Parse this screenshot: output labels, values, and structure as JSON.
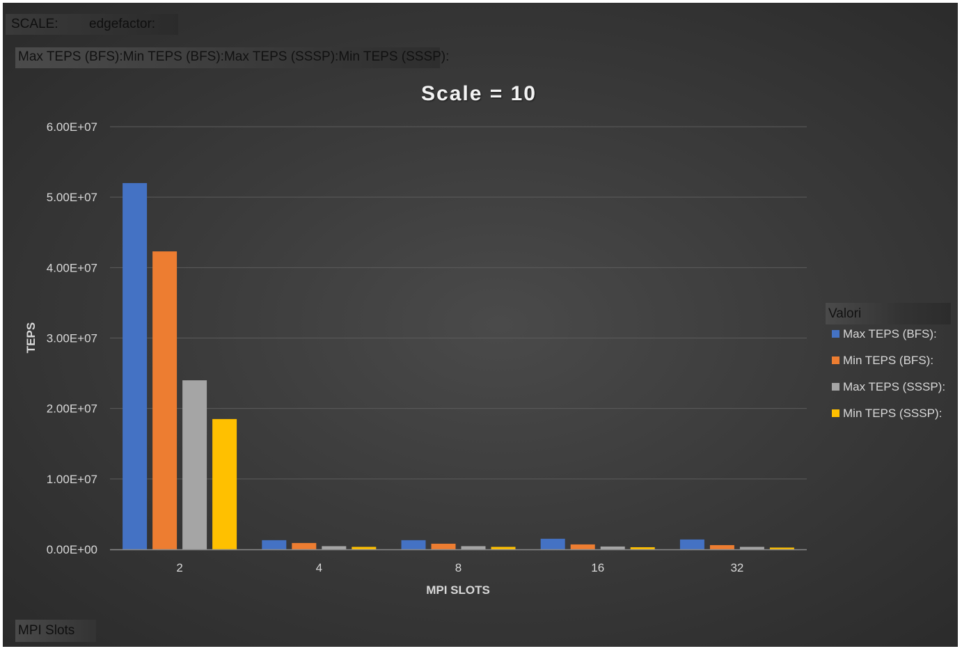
{
  "report_filter": {
    "scale_label": "SCALE:",
    "edgefactor_label": "edgefactor:"
  },
  "values_header": "Max TEPS (BFS):Min TEPS (BFS):Max TEPS (SSSP):Min TEPS (SSSP):",
  "row_field": "MPI Slots",
  "legend_title": "Valori",
  "colors": {
    "Max TEPS (BFS):": "#4472C4",
    "Min TEPS (BFS):": "#ED7D31",
    "Max TEPS (SSSP):": "#A5A5A5",
    "Min TEPS (SSSP):": "#FFC000"
  },
  "chart_data": {
    "type": "bar",
    "title": "Scale = 10",
    "xlabel": "MPI SLOTS",
    "ylabel": "TEPS",
    "categories": [
      "2",
      "4",
      "8",
      "16",
      "32"
    ],
    "ylim": [
      0,
      60000000
    ],
    "yticks": [
      "0.00E+00",
      "1.00E+07",
      "2.00E+07",
      "3.00E+07",
      "4.00E+07",
      "5.00E+07",
      "6.00E+07"
    ],
    "grid": true,
    "legend_position": "right",
    "series": [
      {
        "name": "Max TEPS (BFS):",
        "values": [
          52000000,
          1300000,
          1300000,
          1500000,
          1400000
        ]
      },
      {
        "name": "Min TEPS (BFS):",
        "values": [
          42300000,
          900000,
          800000,
          700000,
          600000
        ]
      },
      {
        "name": "Max TEPS (SSSP):",
        "values": [
          24000000,
          450000,
          450000,
          400000,
          350000
        ]
      },
      {
        "name": "Min TEPS (SSSP):",
        "values": [
          18500000,
          350000,
          350000,
          300000,
          250000
        ]
      }
    ]
  }
}
